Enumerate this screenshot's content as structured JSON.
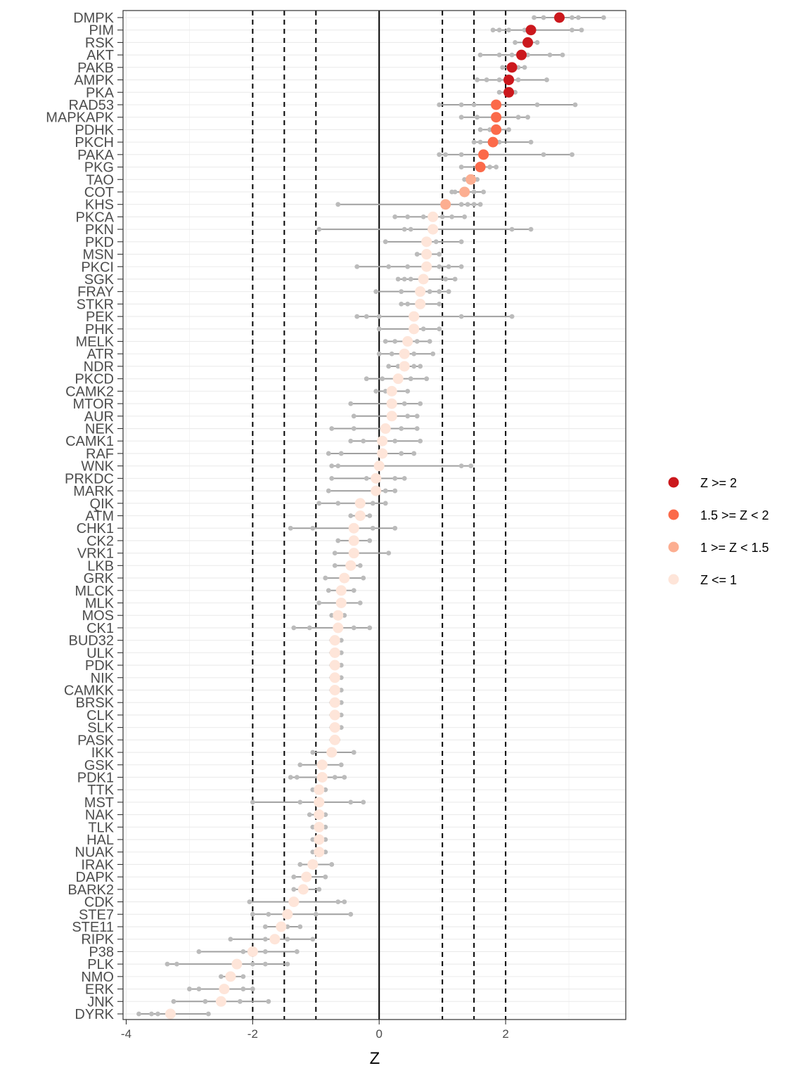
{
  "chart_data": {
    "type": "dot",
    "xlabel": "Z",
    "ylabel": "",
    "xlim": [
      -4.05,
      3.9
    ],
    "x_ticks": [
      -4,
      -2,
      0,
      2
    ],
    "x_tick_labels": [
      "-4",
      "-2",
      "0",
      "2"
    ],
    "grid": true,
    "vlines_dashed": [
      -2,
      -1.5,
      -1,
      1,
      1.5,
      2
    ],
    "vline_solid": 0,
    "legend_position": "right",
    "legend": [
      {
        "label": "Z >= 2",
        "color": "#CB181D"
      },
      {
        "label": "1.5 >= Z < 2",
        "color": "#FB6A4A"
      },
      {
        "label": "1 >= Z < 1.5",
        "color": "#FCAE91"
      },
      {
        "label": "Z <= 1",
        "color": "#FEE5D9"
      }
    ],
    "colors": {
      "point_gray": "#bbbbbb",
      "segment_gray": "#a0a0a0"
    },
    "kinases": [
      {
        "name": "DMPK",
        "z": 2.85,
        "pts": [
          2.45,
          2.6,
          2.85,
          3.05,
          3.15,
          3.55
        ]
      },
      {
        "name": "PIM",
        "z": 2.4,
        "pts": [
          1.8,
          1.9,
          2.05,
          2.3,
          2.4,
          3.05,
          3.2
        ]
      },
      {
        "name": "RSK",
        "z": 2.35,
        "pts": [
          2.15,
          2.35,
          2.5
        ]
      },
      {
        "name": "AKT",
        "z": 2.25,
        "pts": [
          1.6,
          1.9,
          2.1,
          2.35,
          2.7,
          2.9
        ]
      },
      {
        "name": "PAKB",
        "z": 2.1,
        "pts": [
          1.95,
          2.05,
          2.2,
          2.3
        ]
      },
      {
        "name": "AMPK",
        "z": 2.05,
        "pts": [
          1.55,
          1.7,
          1.9,
          2.2,
          2.65
        ]
      },
      {
        "name": "PKA",
        "z": 2.05,
        "pts": [
          1.9,
          2.0,
          2.1,
          2.15
        ]
      },
      {
        "name": "RAD53",
        "z": 1.85,
        "pts": [
          0.95,
          1.3,
          1.5,
          1.85,
          2.5,
          3.1
        ]
      },
      {
        "name": "MAPKAPK",
        "z": 1.85,
        "pts": [
          1.3,
          1.55,
          1.85,
          2.2,
          2.35
        ]
      },
      {
        "name": "PDHK",
        "z": 1.85,
        "pts": [
          1.6,
          1.75,
          1.9,
          2.05
        ]
      },
      {
        "name": "PKCH",
        "z": 1.8,
        "pts": [
          1.5,
          1.6,
          1.9,
          2.4
        ]
      },
      {
        "name": "PAKA",
        "z": 1.65,
        "pts": [
          0.95,
          1.05,
          1.3,
          1.65,
          2.6,
          3.05
        ]
      },
      {
        "name": "PKG",
        "z": 1.6,
        "pts": [
          1.3,
          1.6,
          1.75,
          1.85
        ]
      },
      {
        "name": "TAO",
        "z": 1.45,
        "pts": [
          1.35,
          1.45,
          1.55
        ]
      },
      {
        "name": "COT",
        "z": 1.35,
        "pts": [
          1.15,
          1.2,
          1.5,
          1.65
        ]
      },
      {
        "name": "KHS",
        "z": 1.05,
        "pts": [
          -0.65,
          1.3,
          1.4,
          1.5,
          1.6
        ]
      },
      {
        "name": "PKCA",
        "z": 0.85,
        "pts": [
          0.25,
          0.45,
          0.7,
          1.0,
          1.15,
          1.35
        ]
      },
      {
        "name": "PKN",
        "z": 0.85,
        "pts": [
          -0.95,
          0.4,
          0.5,
          0.8,
          2.1,
          2.4
        ]
      },
      {
        "name": "PKD",
        "z": 0.75,
        "pts": [
          0.1,
          0.75,
          0.9,
          1.3
        ]
      },
      {
        "name": "MSN",
        "z": 0.75,
        "pts": [
          0.6,
          0.75,
          0.95
        ]
      },
      {
        "name": "PKCI",
        "z": 0.75,
        "pts": [
          -0.35,
          0.15,
          0.45,
          0.75,
          0.95,
          1.1,
          1.3
        ]
      },
      {
        "name": "SGK",
        "z": 0.7,
        "pts": [
          0.3,
          0.4,
          0.5,
          0.7,
          1.05,
          1.2
        ]
      },
      {
        "name": "FRAY",
        "z": 0.65,
        "pts": [
          -0.05,
          0.35,
          0.65,
          0.8,
          0.95,
          1.1
        ]
      },
      {
        "name": "STKR",
        "z": 0.65,
        "pts": [
          0.35,
          0.45,
          0.65,
          0.95
        ]
      },
      {
        "name": "PEK",
        "z": 0.55,
        "pts": [
          -0.35,
          -0.2,
          0.0,
          0.55,
          1.3,
          2.1
        ]
      },
      {
        "name": "PHK",
        "z": 0.55,
        "pts": [
          0.0,
          0.55,
          0.7,
          0.95
        ]
      },
      {
        "name": "MELK",
        "z": 0.45,
        "pts": [
          0.1,
          0.25,
          0.45,
          0.6,
          0.8
        ]
      },
      {
        "name": "ATR",
        "z": 0.4,
        "pts": [
          0.0,
          0.2,
          0.4,
          0.55,
          0.85
        ]
      },
      {
        "name": "NDR",
        "z": 0.4,
        "pts": [
          0.15,
          0.3,
          0.4,
          0.55,
          0.65
        ]
      },
      {
        "name": "PKCD",
        "z": 0.3,
        "pts": [
          -0.2,
          0.05,
          0.3,
          0.5,
          0.75
        ]
      },
      {
        "name": "CAMK2",
        "z": 0.2,
        "pts": [
          -0.05,
          0.1,
          0.2,
          0.45
        ]
      },
      {
        "name": "MTOR",
        "z": 0.2,
        "pts": [
          -0.45,
          0.2,
          0.4,
          0.65
        ]
      },
      {
        "name": "AUR",
        "z": 0.2,
        "pts": [
          -0.4,
          0.2,
          0.45,
          0.6
        ]
      },
      {
        "name": "NEK",
        "z": 0.1,
        "pts": [
          -0.75,
          -0.4,
          0.1,
          0.35,
          0.6
        ]
      },
      {
        "name": "CAMK1",
        "z": 0.05,
        "pts": [
          -0.45,
          -0.25,
          0.05,
          0.25,
          0.65
        ]
      },
      {
        "name": "RAF",
        "z": 0.05,
        "pts": [
          -0.8,
          -0.6,
          0.05,
          0.35,
          0.55
        ]
      },
      {
        "name": "WNK",
        "z": 0.0,
        "pts": [
          -0.75,
          -0.65,
          0.0,
          1.3,
          1.45
        ]
      },
      {
        "name": "PRKDC",
        "z": -0.05,
        "pts": [
          -0.75,
          -0.2,
          -0.05,
          0.25,
          0.4
        ]
      },
      {
        "name": "MARK",
        "z": -0.05,
        "pts": [
          -0.8,
          -0.05,
          0.1,
          0.25
        ]
      },
      {
        "name": "QIK",
        "z": -0.3,
        "pts": [
          -0.95,
          -0.65,
          -0.3,
          -0.1,
          0.1
        ]
      },
      {
        "name": "ATM",
        "z": -0.3,
        "pts": [
          -0.45,
          -0.3,
          -0.15
        ]
      },
      {
        "name": "CHK1",
        "z": -0.4,
        "pts": [
          -1.4,
          -1.05,
          -0.4,
          -0.1,
          0.25
        ]
      },
      {
        "name": "CK2",
        "z": -0.4,
        "pts": [
          -0.65,
          -0.4,
          -0.15
        ]
      },
      {
        "name": "VRK1",
        "z": -0.4,
        "pts": [
          -0.7,
          -0.4,
          0.15
        ]
      },
      {
        "name": "LKB",
        "z": -0.45,
        "pts": [
          -0.7,
          -0.45,
          -0.3
        ]
      },
      {
        "name": "GRK",
        "z": -0.55,
        "pts": [
          -0.85,
          -0.55,
          -0.25
        ]
      },
      {
        "name": "MLCK",
        "z": -0.6,
        "pts": [
          -0.8,
          -0.6,
          -0.4
        ]
      },
      {
        "name": "MLK",
        "z": -0.6,
        "pts": [
          -0.95,
          -0.6,
          -0.3
        ]
      },
      {
        "name": "MOS",
        "z": -0.65,
        "pts": [
          -0.75,
          -0.65,
          -0.55
        ]
      },
      {
        "name": "CK1",
        "z": -0.65,
        "pts": [
          -1.35,
          -1.1,
          -0.65,
          -0.4,
          -0.15
        ]
      },
      {
        "name": "BUD32",
        "z": -0.7,
        "pts": [
          -0.75,
          -0.7,
          -0.6
        ]
      },
      {
        "name": "ULK",
        "z": -0.7,
        "pts": [
          -0.75,
          -0.7,
          -0.6
        ]
      },
      {
        "name": "PDK",
        "z": -0.7,
        "pts": [
          -0.75,
          -0.7,
          -0.6
        ]
      },
      {
        "name": "NIK",
        "z": -0.7,
        "pts": [
          -0.75,
          -0.7,
          -0.6
        ]
      },
      {
        "name": "CAMKK",
        "z": -0.7,
        "pts": [
          -0.75,
          -0.7,
          -0.6
        ]
      },
      {
        "name": "BRSK",
        "z": -0.7,
        "pts": [
          -0.75,
          -0.7,
          -0.6
        ]
      },
      {
        "name": "CLK",
        "z": -0.7,
        "pts": [
          -0.75,
          -0.7,
          -0.6
        ]
      },
      {
        "name": "SLK",
        "z": -0.7,
        "pts": [
          -0.75,
          -0.7,
          -0.6
        ]
      },
      {
        "name": "PASK",
        "z": -0.7,
        "pts": [
          -0.75,
          -0.7,
          -0.65
        ]
      },
      {
        "name": "IKK",
        "z": -0.75,
        "pts": [
          -1.05,
          -0.75,
          -0.4
        ]
      },
      {
        "name": "GSK",
        "z": -0.9,
        "pts": [
          -1.25,
          -0.9,
          -0.6
        ]
      },
      {
        "name": "PDK1",
        "z": -0.9,
        "pts": [
          -1.4,
          -1.3,
          -0.9,
          -0.7,
          -0.55
        ]
      },
      {
        "name": "TTK",
        "z": -0.95,
        "pts": [
          -1.05,
          -0.95,
          -0.85
        ]
      },
      {
        "name": "MST",
        "z": -0.95,
        "pts": [
          -2.0,
          -1.25,
          -0.95,
          -0.45,
          -0.25
        ]
      },
      {
        "name": "NAK",
        "z": -0.95,
        "pts": [
          -1.1,
          -0.95,
          -0.85
        ]
      },
      {
        "name": "TLK",
        "z": -0.95,
        "pts": [
          -1.05,
          -0.95,
          -0.85
        ]
      },
      {
        "name": "HAL",
        "z": -0.95,
        "pts": [
          -1.05,
          -0.95,
          -0.85
        ]
      },
      {
        "name": "NUAK",
        "z": -0.95,
        "pts": [
          -1.05,
          -0.95,
          -0.85
        ]
      },
      {
        "name": "IRAK",
        "z": -1.05,
        "pts": [
          -1.25,
          -1.05,
          -0.75
        ]
      },
      {
        "name": "DAPK",
        "z": -1.15,
        "pts": [
          -1.35,
          -1.15,
          -0.85
        ]
      },
      {
        "name": "BARK2",
        "z": -1.2,
        "pts": [
          -1.35,
          -1.2,
          -0.95
        ]
      },
      {
        "name": "CDK",
        "z": -1.35,
        "pts": [
          -2.05,
          -1.35,
          -0.65,
          -0.55
        ]
      },
      {
        "name": "STE7",
        "z": -1.45,
        "pts": [
          -2.0,
          -1.75,
          -1.45,
          -1.0,
          -0.45
        ]
      },
      {
        "name": "STE11",
        "z": -1.55,
        "pts": [
          -1.8,
          -1.55,
          -1.45,
          -1.25
        ]
      },
      {
        "name": "RIPK",
        "z": -1.65,
        "pts": [
          -2.35,
          -1.8,
          -1.65,
          -1.45,
          -1.05
        ]
      },
      {
        "name": "P38",
        "z": -2.0,
        "pts": [
          -2.85,
          -2.15,
          -2.0,
          -1.8,
          -1.3
        ]
      },
      {
        "name": "PLK",
        "z": -2.25,
        "pts": [
          -3.35,
          -3.2,
          -2.25,
          -2.0,
          -1.8,
          -1.45
        ]
      },
      {
        "name": "NMO",
        "z": -2.35,
        "pts": [
          -2.5,
          -2.35,
          -2.15
        ]
      },
      {
        "name": "ERK",
        "z": -2.45,
        "pts": [
          -3.0,
          -2.85,
          -2.45,
          -2.15,
          -2.0
        ]
      },
      {
        "name": "JNK",
        "z": -2.5,
        "pts": [
          -3.25,
          -2.75,
          -2.5,
          -2.2,
          -1.75
        ]
      },
      {
        "name": "DYRK",
        "z": -3.3,
        "pts": [
          -3.8,
          -3.6,
          -3.5,
          -3.3,
          -2.7
        ]
      }
    ]
  }
}
